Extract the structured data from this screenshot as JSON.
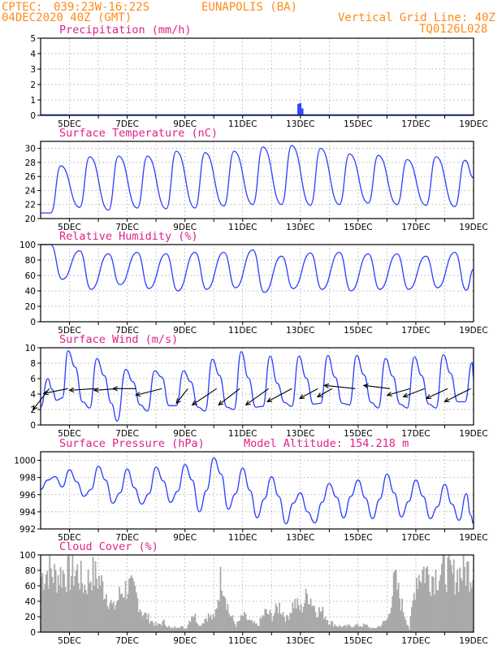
{
  "header": {
    "org": "CPTEC:",
    "coords": "039:23W-16:22S",
    "station": "EUNAPOLIS (BA)",
    "date": "04DEC2020 40Z (GMT)",
    "vgrid": "Vertical Grid Line: 40Z",
    "code": "TQ0126L028"
  },
  "colors": {
    "header": "#ff8a1a",
    "title": "#e0208a",
    "line": "#2b3fff",
    "arrow": "#000000",
    "bar": "#a9a9a9"
  },
  "chart_data": [
    {
      "type": "bar",
      "title": "Precipitation (mm/h)",
      "x_day_range": [
        4,
        19
      ],
      "xticks": [
        "5DEC",
        "7DEC",
        "9DEC",
        "11DEC",
        "13DEC",
        "15DEC",
        "17DEC",
        "19DEC"
      ],
      "ylim": [
        0,
        5
      ],
      "yticks": [
        "0",
        "1",
        "2",
        "3",
        "4",
        "5"
      ],
      "bars": [
        {
          "day": 12.93,
          "value": 0.75
        },
        {
          "day": 13.0,
          "value": 0.8
        },
        {
          "day": 13.07,
          "value": 0.45
        }
      ]
    },
    {
      "type": "line",
      "title": "Surface Temperature (nC)",
      "ylim": [
        20,
        31
      ],
      "yticks": [
        "20",
        "22",
        "24",
        "26",
        "28",
        "30"
      ],
      "xticks": [
        "5DEC",
        "7DEC",
        "9DEC",
        "11DEC",
        "13DEC",
        "15DEC",
        "17DEC",
        "19DEC"
      ],
      "initial": 20.8,
      "daily_min": [
        20.8,
        21.6,
        21.2,
        21.5,
        21.4,
        21.5,
        21.8,
        22.0,
        22.0,
        21.9,
        22.0,
        22.2,
        22.0,
        21.9,
        21.7,
        21.5
      ],
      "daily_max": [
        27.5,
        28.8,
        28.9,
        28.9,
        29.6,
        29.4,
        29.6,
        30.2,
        30.4,
        30.0,
        29.2,
        29.0,
        28.4,
        28.8,
        28.3,
        30.3
      ],
      "final": 25.8
    },
    {
      "type": "line",
      "title": "Relative Humidity (%)",
      "ylim": [
        0,
        100
      ],
      "yticks": [
        "0",
        "20",
        "40",
        "60",
        "80",
        "100"
      ],
      "xticks": [
        "5DEC",
        "7DEC",
        "9DEC",
        "11DEC",
        "13DEC",
        "15DEC",
        "17DEC",
        "19DEC"
      ],
      "initial": 100,
      "daily_max": [
        100,
        92,
        88,
        90,
        88,
        90,
        90,
        93,
        85,
        89,
        90,
        88,
        88,
        85,
        90,
        90
      ],
      "daily_min": [
        55,
        42,
        48,
        43,
        40,
        42,
        44,
        38,
        43,
        42,
        40,
        42,
        42,
        44,
        41,
        37
      ],
      "final": 68
    },
    {
      "type": "line",
      "title": "Surface Wind (m/s)",
      "ylim": [
        0,
        10
      ],
      "yticks": [
        "0",
        "2",
        "4",
        "6",
        "8",
        "10"
      ],
      "xticks": [
        "5DEC",
        "7DEC",
        "9DEC",
        "11DEC",
        "13DEC",
        "15DEC",
        "17DEC",
        "19DEC"
      ],
      "speed_series": [
        {
          "day": 4.0,
          "v": 2.3
        },
        {
          "day": 4.25,
          "v": 6.0
        },
        {
          "day": 4.4,
          "v": 4.6
        },
        {
          "day": 4.55,
          "v": 3.2
        },
        {
          "day": 4.75,
          "v": 3.5
        },
        {
          "day": 4.95,
          "v": 9.6
        },
        {
          "day": 5.2,
          "v": 7.5
        },
        {
          "day": 5.45,
          "v": 3.0
        },
        {
          "day": 5.7,
          "v": 2.2
        },
        {
          "day": 5.95,
          "v": 8.6
        },
        {
          "day": 6.2,
          "v": 6.4
        },
        {
          "day": 6.45,
          "v": 2.8
        },
        {
          "day": 6.65,
          "v": 0.5
        },
        {
          "day": 6.95,
          "v": 7.2
        },
        {
          "day": 7.2,
          "v": 5.6
        },
        {
          "day": 7.45,
          "v": 2.6
        },
        {
          "day": 7.7,
          "v": 1.8
        },
        {
          "day": 7.95,
          "v": 7.0
        },
        {
          "day": 8.2,
          "v": 6.2
        },
        {
          "day": 8.45,
          "v": 2.5
        },
        {
          "day": 8.7,
          "v": 2.5
        },
        {
          "day": 8.95,
          "v": 7.0
        },
        {
          "day": 9.2,
          "v": 5.6
        },
        {
          "day": 9.45,
          "v": 2.3
        },
        {
          "day": 9.7,
          "v": 1.8
        },
        {
          "day": 9.95,
          "v": 8.5
        },
        {
          "day": 10.2,
          "v": 6.4
        },
        {
          "day": 10.45,
          "v": 2.3
        },
        {
          "day": 10.7,
          "v": 2.0
        },
        {
          "day": 10.95,
          "v": 9.5
        },
        {
          "day": 11.2,
          "v": 6.1
        },
        {
          "day": 11.45,
          "v": 2.3
        },
        {
          "day": 11.7,
          "v": 2.4
        },
        {
          "day": 11.95,
          "v": 8.9
        },
        {
          "day": 12.2,
          "v": 5.4
        },
        {
          "day": 12.45,
          "v": 2.9
        },
        {
          "day": 12.7,
          "v": 2.4
        },
        {
          "day": 12.95,
          "v": 8.9
        },
        {
          "day": 13.2,
          "v": 6.1
        },
        {
          "day": 13.45,
          "v": 2.7
        },
        {
          "day": 13.7,
          "v": 2.8
        },
        {
          "day": 13.95,
          "v": 9.0
        },
        {
          "day": 14.2,
          "v": 6.2
        },
        {
          "day": 14.45,
          "v": 2.8
        },
        {
          "day": 14.7,
          "v": 2.6
        },
        {
          "day": 14.95,
          "v": 9.0
        },
        {
          "day": 15.2,
          "v": 6.5
        },
        {
          "day": 15.45,
          "v": 2.9
        },
        {
          "day": 15.7,
          "v": 2.2
        },
        {
          "day": 15.95,
          "v": 8.6
        },
        {
          "day": 16.2,
          "v": 6.3
        },
        {
          "day": 16.45,
          "v": 2.7
        },
        {
          "day": 16.7,
          "v": 2.2
        },
        {
          "day": 16.95,
          "v": 8.8
        },
        {
          "day": 17.2,
          "v": 6.4
        },
        {
          "day": 17.45,
          "v": 2.7
        },
        {
          "day": 17.7,
          "v": 2.2
        },
        {
          "day": 17.95,
          "v": 9.1
        },
        {
          "day": 18.2,
          "v": 6.7
        },
        {
          "day": 18.45,
          "v": 3.0
        },
        {
          "day": 18.7,
          "v": 3.0
        },
        {
          "day": 18.95,
          "v": 8.1
        },
        {
          "day": 19.0,
          "v": 6.2
        }
      ],
      "arrows": [
        {
          "day": 4.3,
          "u": -1.0,
          "v": -1.3
        },
        {
          "day": 4.95,
          "u": -1.5,
          "v": -0.3
        },
        {
          "day": 5.9,
          "u": -1.6,
          "v": -0.1
        },
        {
          "day": 6.7,
          "u": -1.5,
          "v": -0.1
        },
        {
          "day": 7.3,
          "u": -1.4,
          "v": 0.0
        },
        {
          "day": 8.2,
          "u": -1.6,
          "v": -0.4
        },
        {
          "day": 9.1,
          "u": -0.7,
          "v": -0.9
        },
        {
          "day": 10.1,
          "u": -1.5,
          "v": -1.0
        },
        {
          "day": 10.9,
          "u": -1.3,
          "v": -1.0
        },
        {
          "day": 11.9,
          "u": -1.4,
          "v": -1.0
        },
        {
          "day": 12.7,
          "u": -1.5,
          "v": -0.8
        },
        {
          "day": 13.6,
          "u": -1.1,
          "v": -0.6
        },
        {
          "day": 14.1,
          "u": -0.9,
          "v": -0.5
        },
        {
          "day": 14.9,
          "u": -1.9,
          "v": 0.2
        },
        {
          "day": 16.1,
          "u": -1.6,
          "v": 0.2
        },
        {
          "day": 16.8,
          "u": -1.4,
          "v": -0.4
        },
        {
          "day": 17.3,
          "u": -1.3,
          "v": -0.5
        },
        {
          "day": 18.1,
          "u": -1.3,
          "v": -0.6
        },
        {
          "day": 18.9,
          "u": -1.6,
          "v": -0.8
        }
      ]
    },
    {
      "type": "line",
      "title": "Surface Pressure (hPa)",
      "annotation": "Model Altitude: 154.218 m",
      "ylim": [
        992,
        1001
      ],
      "yticks": [
        "992",
        "994",
        "996",
        "998",
        "1000"
      ],
      "xticks": [
        "5DEC",
        "7DEC",
        "9DEC",
        "11DEC",
        "13DEC",
        "15DEC",
        "17DEC",
        "19DEC"
      ],
      "series": [
        {
          "day": 4.0,
          "v": 996.6
        },
        {
          "day": 4.25,
          "v": 997.7
        },
        {
          "day": 4.5,
          "v": 998.1
        },
        {
          "day": 4.75,
          "v": 996.9
        },
        {
          "day": 5.0,
          "v": 998.9
        },
        {
          "day": 5.25,
          "v": 997.5
        },
        {
          "day": 5.5,
          "v": 995.8
        },
        {
          "day": 5.75,
          "v": 996.6
        },
        {
          "day": 6.0,
          "v": 999.3
        },
        {
          "day": 6.25,
          "v": 997.7
        },
        {
          "day": 6.5,
          "v": 995.0
        },
        {
          "day": 6.75,
          "v": 996.2
        },
        {
          "day": 7.0,
          "v": 999.0
        },
        {
          "day": 7.25,
          "v": 996.8
        },
        {
          "day": 7.5,
          "v": 994.9
        },
        {
          "day": 7.75,
          "v": 996.1
        },
        {
          "day": 8.0,
          "v": 999.2
        },
        {
          "day": 8.25,
          "v": 997.6
        },
        {
          "day": 8.5,
          "v": 995.1
        },
        {
          "day": 8.75,
          "v": 996.4
        },
        {
          "day": 9.0,
          "v": 999.5
        },
        {
          "day": 9.25,
          "v": 997.7
        },
        {
          "day": 9.5,
          "v": 994.0
        },
        {
          "day": 9.75,
          "v": 996.5
        },
        {
          "day": 10.0,
          "v": 1000.3
        },
        {
          "day": 10.25,
          "v": 998.4
        },
        {
          "day": 10.5,
          "v": 994.3
        },
        {
          "day": 10.75,
          "v": 996.1
        },
        {
          "day": 11.0,
          "v": 999.1
        },
        {
          "day": 11.25,
          "v": 996.5
        },
        {
          "day": 11.5,
          "v": 993.3
        },
        {
          "day": 11.75,
          "v": 995.5
        },
        {
          "day": 12.0,
          "v": 998.1
        },
        {
          "day": 12.25,
          "v": 995.8
        },
        {
          "day": 12.5,
          "v": 992.6
        },
        {
          "day": 12.75,
          "v": 995.0
        },
        {
          "day": 13.0,
          "v": 996.2
        },
        {
          "day": 13.25,
          "v": 994.0
        },
        {
          "day": 13.5,
          "v": 992.7
        },
        {
          "day": 13.75,
          "v": 995.1
        },
        {
          "day": 14.0,
          "v": 997.3
        },
        {
          "day": 14.25,
          "v": 995.7
        },
        {
          "day": 14.5,
          "v": 993.3
        },
        {
          "day": 14.75,
          "v": 995.8
        },
        {
          "day": 15.0,
          "v": 997.7
        },
        {
          "day": 15.25,
          "v": 995.6
        },
        {
          "day": 15.5,
          "v": 993.2
        },
        {
          "day": 15.75,
          "v": 995.5
        },
        {
          "day": 16.0,
          "v": 998.4
        },
        {
          "day": 16.25,
          "v": 996.2
        },
        {
          "day": 16.5,
          "v": 993.4
        },
        {
          "day": 16.75,
          "v": 995.2
        },
        {
          "day": 17.0,
          "v": 997.7
        },
        {
          "day": 17.25,
          "v": 995.8
        },
        {
          "day": 17.5,
          "v": 993.2
        },
        {
          "day": 17.75,
          "v": 994.6
        },
        {
          "day": 18.0,
          "v": 997.2
        },
        {
          "day": 18.25,
          "v": 994.9
        },
        {
          "day": 18.5,
          "v": 993.0
        },
        {
          "day": 18.75,
          "v": 996.1
        },
        {
          "day": 18.9,
          "v": 993.6
        },
        {
          "day": 19.0,
          "v": 992.6
        }
      ]
    },
    {
      "type": "bar",
      "title": "Cloud Cover (%)",
      "ylim": [
        0,
        100
      ],
      "yticks": [
        "0",
        "20",
        "40",
        "60",
        "80",
        "100"
      ],
      "xticks": [
        "5DEC",
        "7DEC",
        "9DEC",
        "11DEC",
        "13DEC",
        "15DEC",
        "17DEC",
        "19DEC"
      ],
      "step_hours": 1,
      "blocks": [
        {
          "day": 4.0,
          "v": 85
        },
        {
          "day": 4.25,
          "v": 95
        },
        {
          "day": 4.5,
          "v": 85
        },
        {
          "day": 4.75,
          "v": 90
        },
        {
          "day": 5.0,
          "v": 88
        },
        {
          "day": 5.25,
          "v": 92
        },
        {
          "day": 5.5,
          "v": 70
        },
        {
          "day": 5.75,
          "v": 90
        },
        {
          "day": 6.0,
          "v": 80
        },
        {
          "day": 6.25,
          "v": 60
        },
        {
          "day": 6.5,
          "v": 35
        },
        {
          "day": 6.75,
          "v": 60
        },
        {
          "day": 7.0,
          "v": 70
        },
        {
          "day": 7.25,
          "v": 60
        },
        {
          "day": 7.5,
          "v": 30
        },
        {
          "day": 7.75,
          "v": 20
        },
        {
          "day": 8.0,
          "v": 10
        },
        {
          "day": 8.25,
          "v": 15
        },
        {
          "day": 8.5,
          "v": 5
        },
        {
          "day": 8.75,
          "v": 10
        },
        {
          "day": 9.0,
          "v": 5
        },
        {
          "day": 9.25,
          "v": 30
        },
        {
          "day": 9.5,
          "v": 10
        },
        {
          "day": 9.75,
          "v": 25
        },
        {
          "day": 10.0,
          "v": 20
        },
        {
          "day": 10.25,
          "v": 90
        },
        {
          "day": 10.5,
          "v": 30
        },
        {
          "day": 10.75,
          "v": 10
        },
        {
          "day": 11.0,
          "v": 25
        },
        {
          "day": 11.25,
          "v": 15
        },
        {
          "day": 11.5,
          "v": 10
        },
        {
          "day": 11.75,
          "v": 30
        },
        {
          "day": 12.0,
          "v": 25
        },
        {
          "day": 12.25,
          "v": 40
        },
        {
          "day": 12.5,
          "v": 20
        },
        {
          "day": 12.75,
          "v": 45
        },
        {
          "day": 13.0,
          "v": 35
        },
        {
          "day": 13.25,
          "v": 60
        },
        {
          "day": 13.5,
          "v": 35
        },
        {
          "day": 13.75,
          "v": 30
        },
        {
          "day": 14.0,
          "v": 15
        },
        {
          "day": 14.25,
          "v": 10
        },
        {
          "day": 14.5,
          "v": 8
        },
        {
          "day": 14.75,
          "v": 10
        },
        {
          "day": 15.0,
          "v": 10
        },
        {
          "day": 15.25,
          "v": 10
        },
        {
          "day": 15.5,
          "v": 5
        },
        {
          "day": 15.75,
          "v": 10
        },
        {
          "day": 16.0,
          "v": 20
        },
        {
          "day": 16.25,
          "v": 80
        },
        {
          "day": 16.5,
          "v": 40
        },
        {
          "day": 16.75,
          "v": 5
        },
        {
          "day": 17.0,
          "v": 85
        },
        {
          "day": 17.25,
          "v": 95
        },
        {
          "day": 17.5,
          "v": 85
        },
        {
          "day": 17.75,
          "v": 90
        },
        {
          "day": 18.0,
          "v": 95
        },
        {
          "day": 18.25,
          "v": 85
        },
        {
          "day": 18.5,
          "v": 90
        },
        {
          "day": 18.75,
          "v": 95
        },
        {
          "day": 19.0,
          "v": 90
        }
      ]
    }
  ]
}
